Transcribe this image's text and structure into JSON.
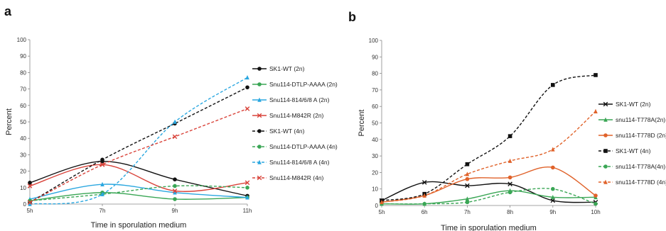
{
  "panels": [
    {
      "letter": "a"
    },
    {
      "letter": "b"
    }
  ],
  "chart_data": [
    {
      "type": "line",
      "x": [
        "5h",
        "7h",
        "9h",
        "11h"
      ],
      "ylabel": "Percent",
      "xlabel": "Time in sporulation medium",
      "ylim": [
        0,
        100
      ],
      "yticks": [
        0,
        10,
        20,
        30,
        40,
        50,
        60,
        70,
        80,
        90,
        100
      ],
      "grid": false,
      "legend_position": "right",
      "series": [
        {
          "name": "SK1-WT (2n)",
          "values": [
            13,
            26,
            15,
            5
          ],
          "color": "#111111",
          "dash": false,
          "marker": "circle"
        },
        {
          "name": "Snu114-DTLP-AAAA (2n)",
          "values": [
            2,
            7,
            3,
            4
          ],
          "color": "#3aa655",
          "dash": false,
          "marker": "circle"
        },
        {
          "name": "Snu114-814/6/8 A (2n)",
          "values": [
            3,
            12,
            7,
            4
          ],
          "color": "#2aa7e0",
          "dash": false,
          "marker": "triangle"
        },
        {
          "name": "Snu114-M842R (2n)",
          "values": [
            11,
            24,
            8,
            13
          ],
          "color": "#d9433a",
          "dash": false,
          "marker": "x"
        },
        {
          "name": "SK1-WT (4n)",
          "values": [
            1,
            27,
            49,
            71
          ],
          "color": "#111111",
          "dash": true,
          "marker": "circle"
        },
        {
          "name": "Snu114-DTLP-AAAA (4n)",
          "values": [
            2,
            6,
            11,
            10
          ],
          "color": "#3aa655",
          "dash": true,
          "marker": "circle"
        },
        {
          "name": "Snu114-814/6/8 A (4n)",
          "values": [
            0,
            6,
            50,
            77
          ],
          "color": "#2aa7e0",
          "dash": true,
          "marker": "triangle"
        },
        {
          "name": "Snu114-M842R (4n)",
          "values": [
            1,
            24,
            41,
            58
          ],
          "color": "#d9433a",
          "dash": true,
          "marker": "x"
        }
      ]
    },
    {
      "type": "line",
      "x": [
        "5h",
        "6h",
        "7h",
        "8h",
        "9h",
        "10h"
      ],
      "ylabel": "Percent",
      "xlabel": "Time in sporulation medium",
      "ylim": [
        0,
        100
      ],
      "yticks": [
        0,
        10,
        20,
        30,
        40,
        50,
        60,
        70,
        80,
        90,
        100
      ],
      "grid": false,
      "legend_position": "right",
      "series": [
        {
          "name": "SK1-WT (2n)",
          "values": [
            3,
            14,
            12,
            13,
            3,
            2
          ],
          "color": "#111111",
          "dash": false,
          "marker": "x"
        },
        {
          "name": "snu114-T778A(2n)",
          "values": [
            1,
            1,
            4,
            9,
            5,
            5
          ],
          "color": "#3aa655",
          "dash": false,
          "marker": "triangle"
        },
        {
          "name": "snu114-T778D (2n)",
          "values": [
            2,
            6,
            16,
            17,
            23,
            6
          ],
          "color": "#e0622a",
          "dash": false,
          "marker": "circle"
        },
        {
          "name": "SK1-WT (4n)",
          "values": [
            3,
            7,
            25,
            42,
            73,
            79
          ],
          "color": "#111111",
          "dash": true,
          "marker": "square"
        },
        {
          "name": "snu114-T778A(4n)",
          "values": [
            1,
            1,
            2,
            8,
            10,
            1
          ],
          "color": "#3aa655",
          "dash": true,
          "marker": "circle"
        },
        {
          "name": "snu114-T778D (4n)",
          "values": [
            2,
            6,
            19,
            27,
            34,
            57
          ],
          "color": "#e0622a",
          "dash": true,
          "marker": "triangle"
        }
      ]
    }
  ]
}
